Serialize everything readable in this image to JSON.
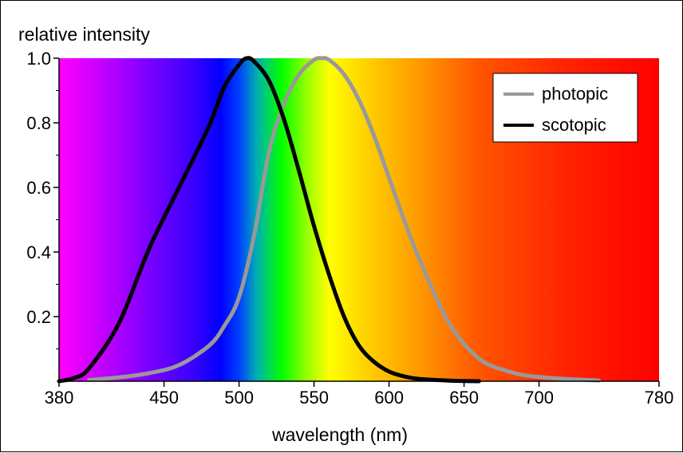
{
  "chart_data": {
    "type": "line",
    "title": "",
    "xlabel": "wavelength (nm)",
    "ylabel": "relative intensity",
    "xlim": [
      380,
      780
    ],
    "ylim": [
      0,
      1.0
    ],
    "x_ticks": [
      380,
      450,
      500,
      550,
      600,
      650,
      700,
      780
    ],
    "y_ticks": [
      0.2,
      0.4,
      0.6,
      0.8,
      1.0
    ],
    "y_tick_labels": [
      "0.2",
      "0.4",
      "0.6",
      "0.8",
      "1.0"
    ],
    "grid": false,
    "background": "visible spectrum gradient",
    "legend": {
      "placement": "top-right"
    },
    "series": [
      {
        "name": "photopic",
        "color": "#999999",
        "x": [
          400,
          420,
          440,
          460,
          480,
          490,
          500,
          510,
          520,
          530,
          540,
          550,
          555,
          560,
          570,
          580,
          590,
          600,
          610,
          620,
          640,
          660,
          680,
          700,
          740
        ],
        "y": [
          0.004,
          0.012,
          0.025,
          0.05,
          0.11,
          0.17,
          0.26,
          0.45,
          0.71,
          0.86,
          0.95,
          0.995,
          1.0,
          0.995,
          0.95,
          0.87,
          0.76,
          0.63,
          0.5,
          0.38,
          0.18,
          0.07,
          0.03,
          0.013,
          0.002
        ]
      },
      {
        "name": "scotopic",
        "color": "#000000",
        "x": [
          380,
          390,
          400,
          420,
          440,
          460,
          480,
          490,
          500,
          505,
          510,
          520,
          530,
          540,
          550,
          560,
          570,
          580,
          590,
          600,
          610,
          620,
          640,
          660
        ],
        "y": [
          0.0,
          0.01,
          0.04,
          0.18,
          0.41,
          0.6,
          0.79,
          0.91,
          0.98,
          1.0,
          0.99,
          0.93,
          0.81,
          0.65,
          0.48,
          0.33,
          0.2,
          0.11,
          0.06,
          0.03,
          0.015,
          0.007,
          0.002,
          0.0
        ]
      }
    ]
  }
}
